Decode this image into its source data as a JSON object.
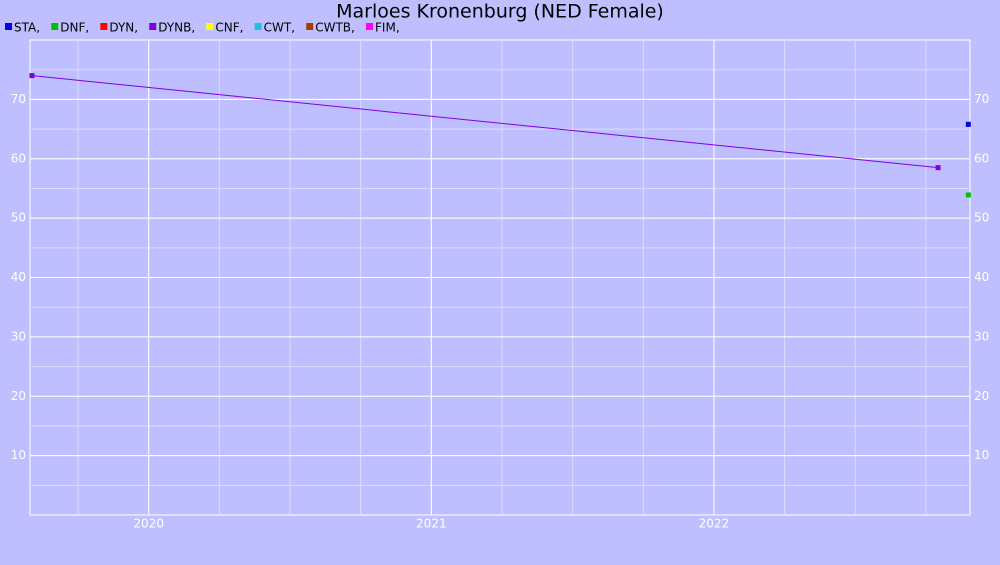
{
  "chart_data": {
    "type": "line",
    "title": "Marloes Kronenburg (NED Female)",
    "xlim": [
      2019.58,
      2022.906
    ],
    "xticks": [
      2020,
      2021,
      2022
    ],
    "ylim": [
      0,
      80
    ],
    "yticks": [
      10,
      20,
      30,
      40,
      50,
      60,
      70
    ],
    "grid": true,
    "legend": "top-left",
    "series": [
      {
        "name": "STA",
        "color": "#0000e0",
        "x": [
          2022.9
        ],
        "values": [
          65.8
        ]
      },
      {
        "name": "DNF",
        "color": "#00c000",
        "x": [
          2022.9
        ],
        "values": [
          53.9
        ]
      },
      {
        "name": "DYN",
        "color": "#ff0000",
        "x": [],
        "values": []
      },
      {
        "name": "DYNB",
        "color": "#8000e0",
        "x": [
          2019.587,
          2022.793
        ],
        "values": [
          74,
          58.5
        ]
      },
      {
        "name": "CNF",
        "color": "#ffff00",
        "x": [],
        "values": []
      },
      {
        "name": "CWT",
        "color": "#20c0e0",
        "x": [],
        "values": []
      },
      {
        "name": "CWTB",
        "color": "#a04000",
        "x": [],
        "values": []
      },
      {
        "name": "FIM",
        "color": "#ff00ff",
        "x": [],
        "values": []
      }
    ]
  }
}
